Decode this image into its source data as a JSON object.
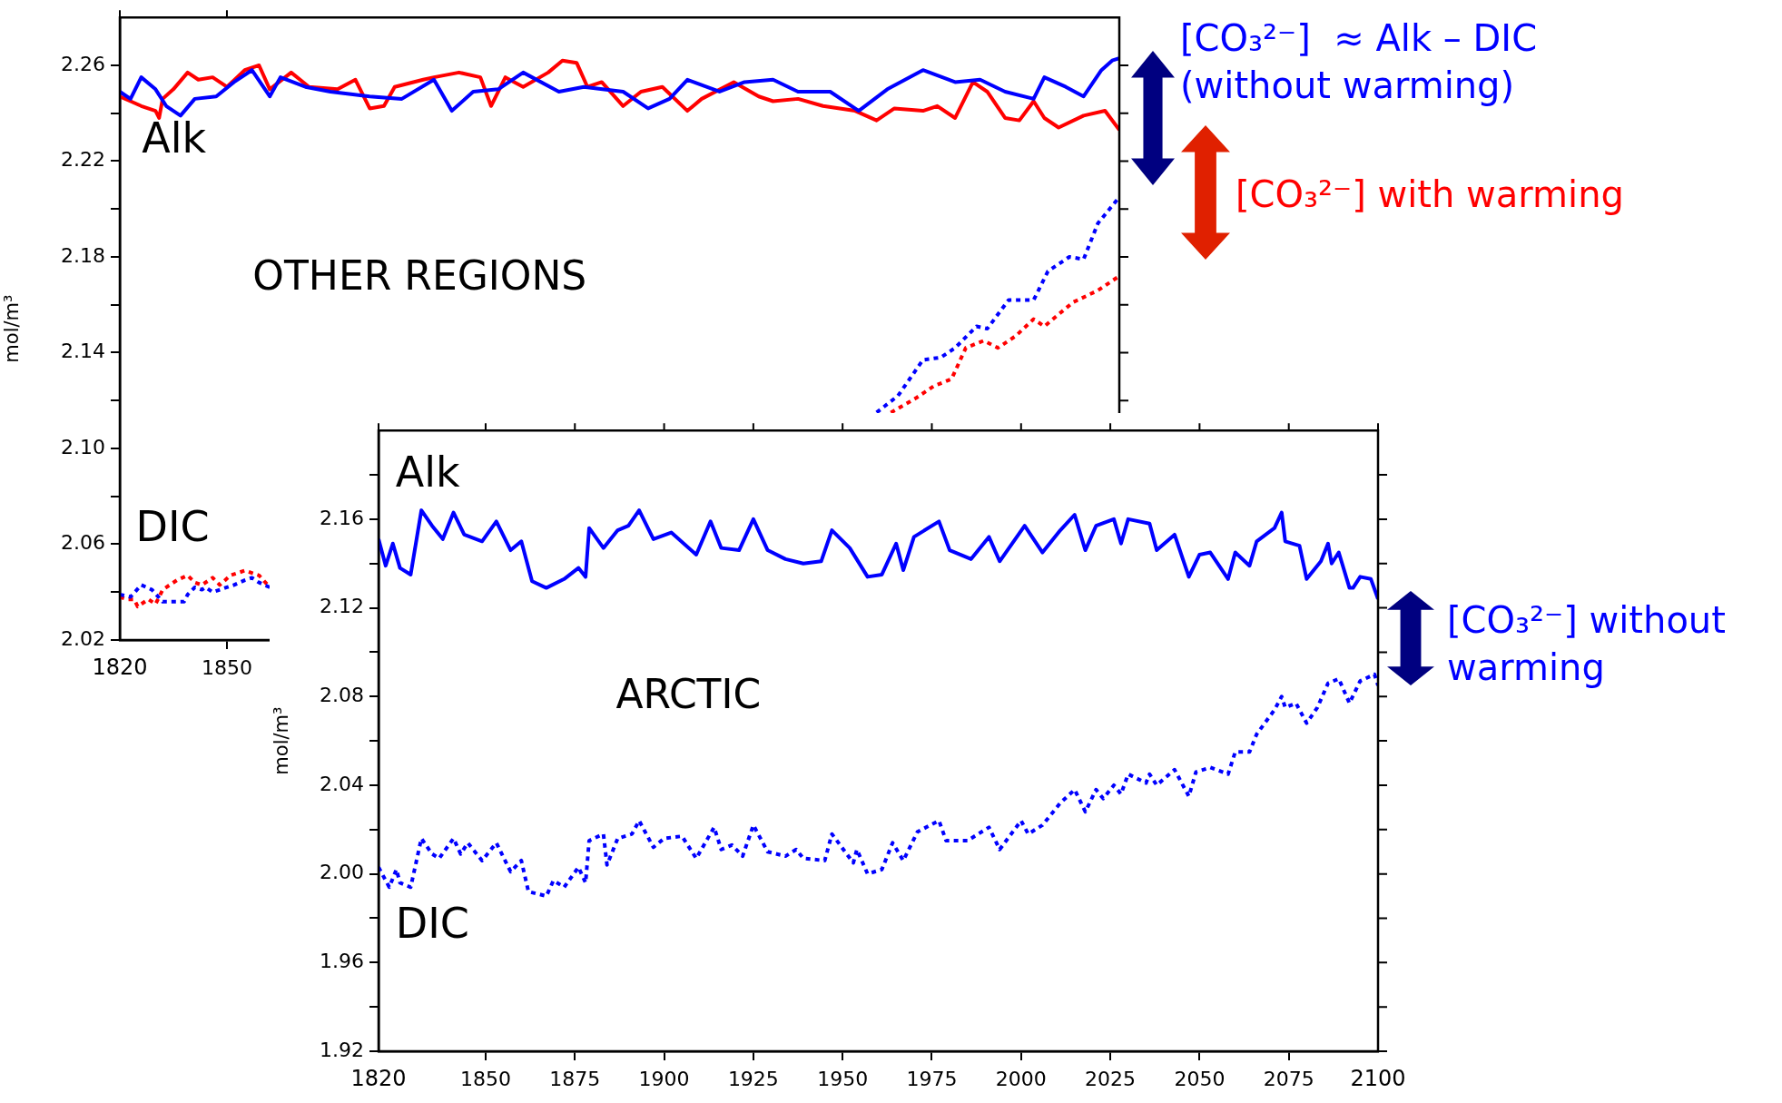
{
  "chart_data": [
    {
      "type": "line",
      "title": "OTHER REGIONS",
      "ylabel": "mol/m³",
      "marker": "none",
      "xlim": [
        1820,
        2100
      ],
      "ylim": [
        2.02,
        2.28
      ],
      "xticks": [
        {
          "value": 1820,
          "label": "1820"
        },
        {
          "value": 1850,
          "label": "1850"
        }
      ],
      "yticks": [
        {
          "value": 2.02,
          "label": "2.02"
        },
        {
          "value": 2.04,
          "label": null
        },
        {
          "value": 2.06,
          "label": "2.06"
        },
        {
          "value": 2.08,
          "label": null
        },
        {
          "value": 2.1,
          "label": "2.10"
        },
        {
          "value": 2.12,
          "label": null
        },
        {
          "value": 2.14,
          "label": "2.14"
        },
        {
          "value": 2.16,
          "label": null
        },
        {
          "value": 2.18,
          "label": "2.18"
        },
        {
          "value": 2.2,
          "label": null
        },
        {
          "value": 2.22,
          "label": "2.22"
        },
        {
          "value": 2.24,
          "label": null
        },
        {
          "value": 2.26,
          "label": "2.26"
        }
      ],
      "series": [
        {
          "color": "#0000ff",
          "line_style": "solid",
          "x": [
            1820,
            1823,
            1826,
            1830,
            1833,
            1837,
            1841,
            1847,
            1852,
            1857,
            1862,
            1865,
            1872,
            1879,
            1890,
            1899,
            1908,
            1913,
            1919,
            1926,
            1933,
            1943,
            1950,
            1961,
            1968,
            1974,
            1979,
            1988,
            1995,
            2003,
            2010,
            2019,
            2027,
            2035,
            2045,
            2054,
            2061,
            2068,
            2076,
            2079,
            2085,
            2090,
            2095,
            2098,
            2100
          ],
          "values": [
            2.249,
            2.246,
            2.255,
            2.25,
            2.243,
            2.239,
            2.246,
            2.247,
            2.253,
            2.258,
            2.247,
            2.255,
            2.251,
            2.249,
            2.247,
            2.246,
            2.254,
            2.241,
            2.249,
            2.25,
            2.257,
            2.249,
            2.251,
            2.249,
            2.242,
            2.246,
            2.254,
            2.249,
            2.253,
            2.254,
            2.249,
            2.249,
            2.241,
            2.25,
            2.258,
            2.253,
            2.254,
            2.249,
            2.246,
            2.255,
            2.251,
            2.247,
            2.258,
            2.262,
            2.263
          ]
        },
        {
          "color": "#ff0000",
          "line_style": "solid",
          "x": [
            1820,
            1823,
            1826,
            1830,
            1831,
            1832,
            1835,
            1839,
            1842,
            1846,
            1850,
            1855,
            1859,
            1862,
            1868,
            1873,
            1881,
            1886,
            1890,
            1894,
            1897,
            1905,
            1908,
            1915,
            1921,
            1924,
            1928,
            1933,
            1940,
            1944,
            1948,
            1951,
            1955,
            1961,
            1966,
            1972,
            1979,
            1983,
            1992,
            1999,
            2003,
            2010,
            2017,
            2026,
            2032,
            2037,
            2045,
            2049,
            2054,
            2059,
            2063,
            2068,
            2072,
            2076,
            2079,
            2083,
            2090,
            2096,
            2100
          ],
          "values": [
            2.247,
            2.245,
            2.243,
            2.241,
            2.238,
            2.246,
            2.25,
            2.257,
            2.254,
            2.255,
            2.251,
            2.258,
            2.26,
            2.25,
            2.257,
            2.251,
            2.25,
            2.254,
            2.242,
            2.243,
            2.251,
            2.254,
            2.255,
            2.257,
            2.255,
            2.243,
            2.255,
            2.251,
            2.257,
            2.262,
            2.261,
            2.251,
            2.253,
            2.243,
            2.249,
            2.251,
            2.241,
            2.246,
            2.253,
            2.247,
            2.245,
            2.246,
            2.243,
            2.241,
            2.237,
            2.242,
            2.241,
            2.243,
            2.238,
            2.253,
            2.249,
            2.238,
            2.237,
            2.245,
            2.238,
            2.234,
            2.239,
            2.241,
            2.233
          ]
        },
        {
          "color": "#0000ff",
          "line_style": "dotted",
          "x": [
            1820,
            1823,
            1826,
            1829,
            1832,
            1835,
            1838,
            1839,
            1841,
            1843,
            1844,
            1846,
            1850,
            1852,
            1855,
            1857,
            1859,
            1862,
            1863,
            2032,
            2038,
            2045,
            2050,
            2054,
            2060,
            2063,
            2069,
            2076,
            2080,
            2086,
            2090,
            2094,
            2100
          ],
          "values": [
            2.039,
            2.038,
            2.043,
            2.041,
            2.036,
            2.036,
            2.036,
            2.039,
            2.042,
            2.041,
            2.042,
            2.04,
            2.042,
            2.043,
            2.045,
            2.046,
            2.044,
            2.042,
            null,
            2.115,
            2.122,
            2.137,
            2.138,
            2.142,
            2.151,
            2.15,
            2.162,
            2.162,
            2.174,
            2.18,
            2.179,
            2.194,
            2.205
          ]
        },
        {
          "color": "#ff0000",
          "line_style": "dotted",
          "x": [
            1820,
            1822,
            1824,
            1825,
            1828,
            1830,
            1832,
            1834,
            1836,
            1839,
            1841,
            1843,
            1846,
            1848,
            1851,
            1855,
            1857,
            1859,
            1862,
            1863,
            2036,
            2043,
            2048,
            2053,
            2057,
            2062,
            2066,
            2071,
            2076,
            2079,
            2087,
            2094,
            2100
          ],
          "values": [
            2.038,
            2.037,
            2.037,
            2.034,
            2.037,
            2.035,
            2.041,
            2.043,
            2.045,
            2.047,
            2.044,
            2.043,
            2.046,
            2.043,
            2.047,
            2.049,
            2.048,
            2.047,
            2.042,
            null,
            2.115,
            2.121,
            2.126,
            2.129,
            2.142,
            2.145,
            2.142,
            2.147,
            2.154,
            2.151,
            2.161,
            2.166,
            2.172
          ]
        }
      ],
      "annotations": [
        "Alk",
        "DIC",
        "[CO₃²⁻]  ≈ Alk – DIC (without warming)",
        "[CO₃²⁻] with warming"
      ]
    },
    {
      "type": "line",
      "title": "ARCTIC",
      "ylabel": "mol/m³",
      "marker": "none",
      "xlim": [
        1820,
        2100
      ],
      "ylim": [
        1.92,
        2.2
      ],
      "xticks": [
        {
          "value": 1820,
          "label": "1820"
        },
        {
          "value": 1850,
          "label": "1850"
        },
        {
          "value": 1875,
          "label": "1875"
        },
        {
          "value": 1900,
          "label": "1900"
        },
        {
          "value": 1925,
          "label": "1925"
        },
        {
          "value": 1950,
          "label": "1950"
        },
        {
          "value": 1975,
          "label": "1975"
        },
        {
          "value": 2000,
          "label": "2000"
        },
        {
          "value": 2025,
          "label": "2025"
        },
        {
          "value": 2050,
          "label": "2050"
        },
        {
          "value": 2075,
          "label": "2075"
        },
        {
          "value": 2100,
          "label": "2100"
        }
      ],
      "yticks": [
        {
          "value": 1.92,
          "label": "1.92"
        },
        {
          "value": 1.94,
          "label": null
        },
        {
          "value": 1.96,
          "label": "1.96"
        },
        {
          "value": 1.98,
          "label": null
        },
        {
          "value": 2.0,
          "label": "2.00"
        },
        {
          "value": 2.02,
          "label": null
        },
        {
          "value": 2.04,
          "label": "2.04"
        },
        {
          "value": 2.06,
          "label": null
        },
        {
          "value": 2.08,
          "label": "2.08"
        },
        {
          "value": 2.1,
          "label": null
        },
        {
          "value": 2.12,
          "label": "2.12"
        },
        {
          "value": 2.14,
          "label": null
        },
        {
          "value": 2.16,
          "label": "2.16"
        },
        {
          "value": 2.18,
          "label": null
        }
      ],
      "series": [
        {
          "color": "#0000ff",
          "line_style": "solid",
          "x": [
            1820,
            1822,
            1824,
            1826,
            1829,
            1832,
            1835,
            1838,
            1841,
            1844,
            1849,
            1853,
            1857,
            1860,
            1863,
            1867,
            1872,
            1876,
            1878,
            1879,
            1883,
            1887,
            1890,
            1893,
            1897,
            1902,
            1909,
            1913,
            1916,
            1921,
            1925,
            1929,
            1934,
            1939,
            1944,
            1947,
            1952,
            1957,
            1961,
            1965,
            1967,
            1970,
            1977,
            1980,
            1986,
            1991,
            1994,
            2001,
            2006,
            2011,
            2015,
            2018,
            2021,
            2026,
            2028,
            2030,
            2036,
            2038,
            2043,
            2047,
            2050,
            2053,
            2058,
            2060,
            2064,
            2066,
            2071,
            2073,
            2074,
            2078,
            2080,
            2084,
            2086,
            2087,
            2089,
            2092,
            2093,
            2095,
            2098,
            2100
          ],
          "values": [
            2.151,
            2.139,
            2.149,
            2.138,
            2.135,
            2.164,
            2.157,
            2.151,
            2.163,
            2.153,
            2.15,
            2.159,
            2.146,
            2.15,
            2.132,
            2.129,
            2.133,
            2.138,
            2.134,
            2.156,
            2.147,
            2.155,
            2.157,
            2.164,
            2.151,
            2.154,
            2.144,
            2.159,
            2.147,
            2.146,
            2.16,
            2.146,
            2.142,
            2.14,
            2.141,
            2.155,
            2.147,
            2.134,
            2.135,
            2.149,
            2.137,
            2.152,
            2.159,
            2.146,
            2.142,
            2.152,
            2.141,
            2.157,
            2.145,
            2.155,
            2.162,
            2.146,
            2.157,
            2.16,
            2.149,
            2.16,
            2.158,
            2.146,
            2.153,
            2.134,
            2.144,
            2.145,
            2.133,
            2.145,
            2.139,
            2.15,
            2.156,
            2.163,
            2.15,
            2.148,
            2.133,
            2.141,
            2.149,
            2.14,
            2.145,
            2.129,
            2.129,
            2.134,
            2.133,
            2.124
          ]
        },
        {
          "color": "#0000ff",
          "line_style": "dotted",
          "x": [
            1820,
            1823,
            1825,
            1826,
            1829,
            1832,
            1835,
            1837,
            1841,
            1843,
            1845,
            1849,
            1853,
            1857,
            1860,
            1862,
            1867,
            1869,
            1872,
            1876,
            1878,
            1879,
            1883,
            1884,
            1887,
            1891,
            1893,
            1897,
            1900,
            1905,
            1909,
            1914,
            1916,
            1919,
            1922,
            1925,
            1929,
            1934,
            1937,
            1939,
            1945,
            1947,
            1953,
            1954,
            1957,
            1961,
            1964,
            1967,
            1971,
            1977,
            1979,
            1985,
            1991,
            1994,
            2000,
            2002,
            2006,
            2011,
            2015,
            2018,
            2021,
            2023,
            2026,
            2028,
            2030,
            2035,
            2036,
            2038,
            2043,
            2047,
            2049,
            2053,
            2058,
            2060,
            2064,
            2066,
            2071,
            2073,
            2074,
            2077,
            2080,
            2083,
            2086,
            2089,
            2092,
            2095,
            2099,
            2100
          ],
          "values": [
            2.003,
            1.994,
            2.002,
            1.996,
            1.994,
            2.016,
            2.009,
            2.007,
            2.016,
            2.009,
            2.014,
            2.006,
            2.014,
            2.001,
            2.006,
            1.992,
            1.99,
            1.997,
            1.994,
            2.003,
            1.996,
            2.015,
            2.018,
            2.004,
            2.016,
            2.018,
            2.024,
            2.012,
            2.016,
            2.017,
            2.007,
            2.021,
            2.011,
            2.013,
            2.008,
            2.022,
            2.01,
            2.008,
            2.011,
            2.007,
            2.006,
            2.018,
            2.005,
            2.011,
            2.0,
            2.002,
            2.014,
            2.006,
            2.019,
            2.024,
            2.015,
            2.015,
            2.021,
            2.011,
            2.024,
            2.018,
            2.022,
            2.032,
            2.038,
            2.028,
            2.038,
            2.034,
            2.04,
            2.036,
            2.045,
            2.041,
            2.045,
            2.04,
            2.047,
            2.035,
            2.046,
            2.048,
            2.045,
            2.055,
            2.055,
            2.063,
            2.074,
            2.08,
            2.075,
            2.077,
            2.068,
            2.075,
            2.086,
            2.088,
            2.077,
            2.087,
            2.09,
            2.085
          ]
        }
      ],
      "annotations": [
        "Alk",
        "DIC",
        "[CO₃²⁻] without warming"
      ]
    }
  ]
}
